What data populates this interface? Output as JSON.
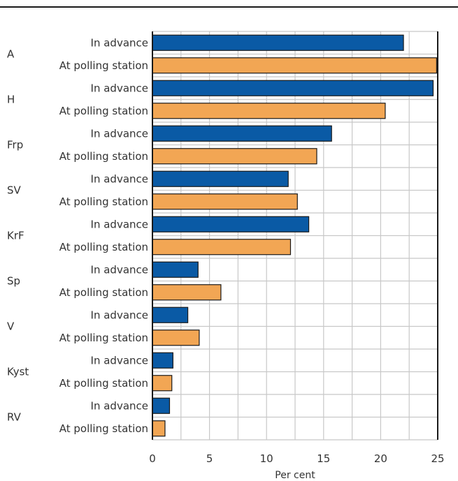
{
  "chart_data": {
    "type": "bar",
    "orientation": "horizontal",
    "title": "",
    "xlabel": "Per cent",
    "ylabel": "",
    "xlim": [
      0,
      25
    ],
    "xticks": [
      0,
      5,
      10,
      15,
      20,
      25
    ],
    "grid": true,
    "legend": "none",
    "groups": [
      {
        "party": "A",
        "bars": [
          {
            "label": "In advance",
            "value": 22.0
          },
          {
            "label": "At polling station",
            "value": 24.9
          }
        ]
      },
      {
        "party": "H",
        "bars": [
          {
            "label": "In advance",
            "value": 24.6
          },
          {
            "label": "At polling station",
            "value": 20.4
          }
        ]
      },
      {
        "party": "Frp",
        "bars": [
          {
            "label": "In advance",
            "value": 15.7
          },
          {
            "label": "At polling station",
            "value": 14.4
          }
        ]
      },
      {
        "party": "SV",
        "bars": [
          {
            "label": "In advance",
            "value": 11.9
          },
          {
            "label": "At polling station",
            "value": 12.7
          }
        ]
      },
      {
        "party": "KrF",
        "bars": [
          {
            "label": "In advance",
            "value": 13.7
          },
          {
            "label": "At polling station",
            "value": 12.1
          }
        ]
      },
      {
        "party": "Sp",
        "bars": [
          {
            "label": "In advance",
            "value": 4.0
          },
          {
            "label": "At polling station",
            "value": 6.0
          }
        ]
      },
      {
        "party": "V",
        "bars": [
          {
            "label": "In advance",
            "value": 3.1
          },
          {
            "label": "At polling station",
            "value": 4.1
          }
        ]
      },
      {
        "party": "Kyst",
        "bars": [
          {
            "label": "In advance",
            "value": 1.8
          },
          {
            "label": "At polling station",
            "value": 1.7
          }
        ]
      },
      {
        "party": "RV",
        "bars": [
          {
            "label": "In advance",
            "value": 1.5
          },
          {
            "label": "At polling station",
            "value": 1.1
          }
        ]
      }
    ],
    "colors": {
      "In advance": "#0a5aa5",
      "At polling station": "#f2a654",
      "bar_outline": "#1a1a1a",
      "grid": "#c8c8c8",
      "axis": "#1a1a1a"
    }
  }
}
